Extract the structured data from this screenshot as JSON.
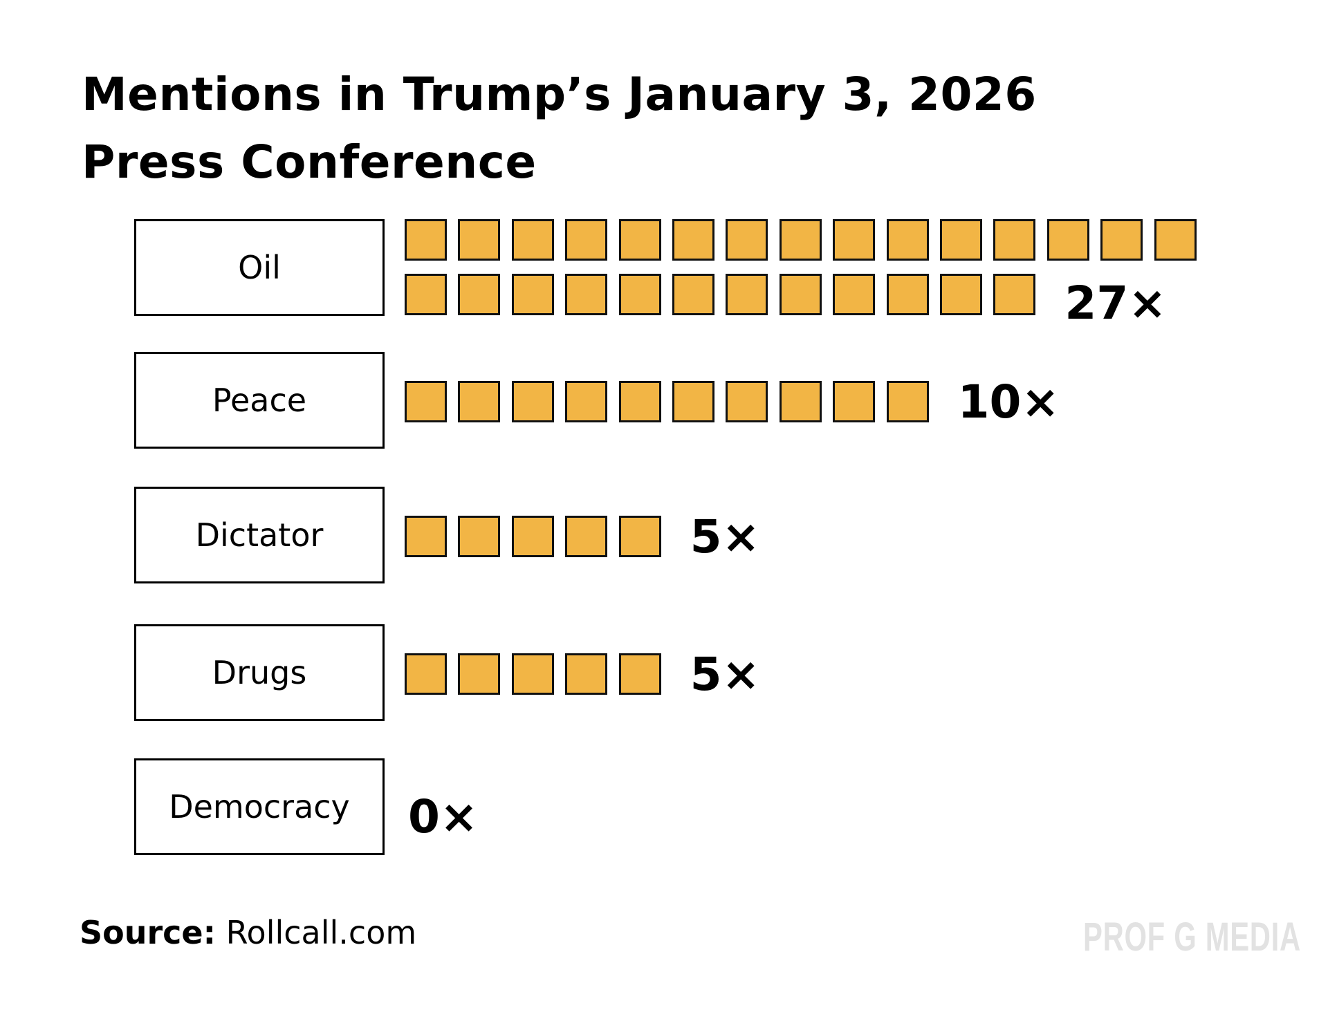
{
  "chart_data": {
    "type": "bar",
    "subtype": "pictogram",
    "title": "Mentions in Trump's January 3, 2026 Press Conference",
    "title_lines": [
      "Mentions in Trump’s January 3, 2026",
      "Press Conference"
    ],
    "categories": [
      "Oil",
      "Peace",
      "Dictator",
      "Drugs",
      "Democracy"
    ],
    "values": [
      27,
      10,
      5,
      5,
      0
    ],
    "value_labels": [
      "27×",
      "10×",
      "5×",
      "5×",
      "0×"
    ],
    "unit": "1 square = 1 mention",
    "squares_per_row": 15,
    "xlabel": "",
    "ylabel": "",
    "grid": false,
    "legend": "none",
    "colors": {
      "square_fill": "#F2B545",
      "square_border": "#111111"
    }
  },
  "footer": {
    "source_label": "Source:",
    "source_value": " Rollcall.com",
    "brand": "PROF G MEDIA"
  }
}
